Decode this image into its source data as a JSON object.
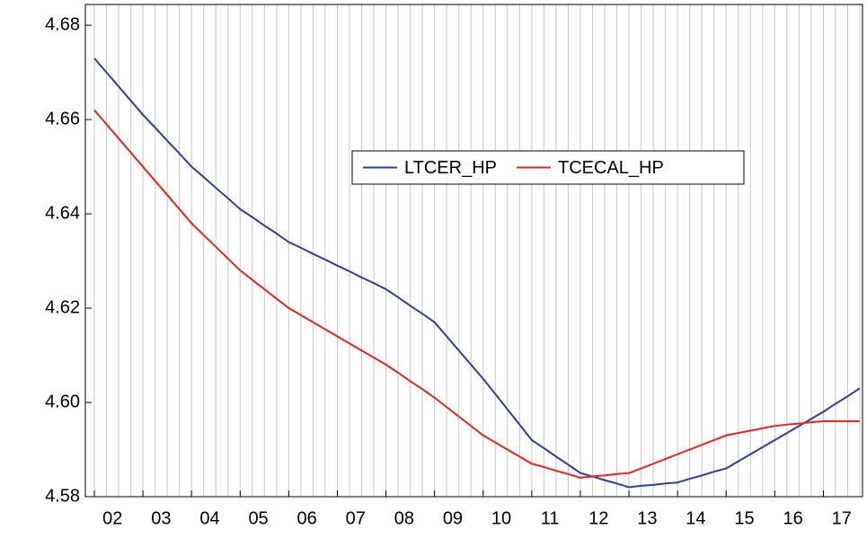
{
  "chart_data": {
    "type": "line",
    "categories": [
      "02",
      null,
      null,
      null,
      "03",
      null,
      null,
      null,
      "04",
      null,
      null,
      null,
      "05",
      null,
      null,
      null,
      "06",
      null,
      null,
      null,
      "07",
      null,
      null,
      null,
      "08",
      null,
      null,
      null,
      "09",
      null,
      null,
      null,
      "10",
      null,
      null,
      null,
      "11",
      null,
      null,
      null,
      "12",
      null,
      null,
      null,
      "13",
      null,
      null,
      null,
      "14",
      null,
      null,
      null,
      "15",
      null,
      null,
      null,
      "16",
      null,
      null,
      null,
      "17",
      null,
      null,
      null
    ],
    "series": [
      {
        "name": "LTCER_HP",
        "color": "#2b3f9e",
        "values": [
          4.673,
          4.67,
          4.667,
          4.664,
          4.661,
          4.6583,
          4.6555,
          4.6528,
          4.65,
          4.6478,
          4.6455,
          4.6433,
          4.641,
          4.6393,
          4.6375,
          4.6358,
          4.634,
          4.6328,
          4.6315,
          4.6303,
          4.629,
          4.6278,
          4.6265,
          4.6253,
          4.624,
          4.6223,
          4.6205,
          4.6188,
          4.617,
          4.614,
          4.611,
          4.608,
          4.605,
          4.6018,
          4.5985,
          4.5953,
          4.592,
          4.5903,
          4.5885,
          4.5868,
          4.585,
          4.5843,
          4.5835,
          4.5828,
          4.582,
          4.5823,
          4.5825,
          4.5828,
          4.583,
          4.5838,
          4.5845,
          4.5853,
          4.586,
          4.5875,
          4.589,
          4.5905,
          4.592,
          4.5935,
          4.595,
          4.5965,
          4.598,
          4.5997,
          4.6013,
          4.603
        ]
      },
      {
        "name": "TCECAL_HP",
        "color": "#e8251c",
        "values": [
          4.662,
          4.659,
          4.656,
          4.653,
          4.65,
          4.647,
          4.644,
          4.641,
          4.638,
          4.6355,
          4.633,
          4.6305,
          4.628,
          4.626,
          4.624,
          4.622,
          4.62,
          4.6185,
          4.617,
          4.6155,
          4.614,
          4.6125,
          4.611,
          4.6095,
          4.608,
          4.6063,
          4.6045,
          4.6028,
          4.601,
          4.599,
          4.597,
          4.595,
          4.593,
          4.5915,
          4.59,
          4.5885,
          4.587,
          4.5863,
          4.5855,
          4.5848,
          4.584,
          4.5843,
          4.5845,
          4.5848,
          4.585,
          4.586,
          4.587,
          4.588,
          4.589,
          4.59,
          4.591,
          4.592,
          4.593,
          4.5935,
          4.594,
          4.5945,
          4.595,
          4.5953,
          4.5955,
          4.5958,
          4.596,
          4.596,
          4.596,
          4.596
        ]
      }
    ],
    "ylim": [
      4.58,
      4.6844
    ],
    "yticks": [
      4.58,
      {
        "value": 4.6,
        "label": "4.60"
      },
      4.62,
      4.64,
      4.66,
      4.68
    ],
    "grid": true
  }
}
